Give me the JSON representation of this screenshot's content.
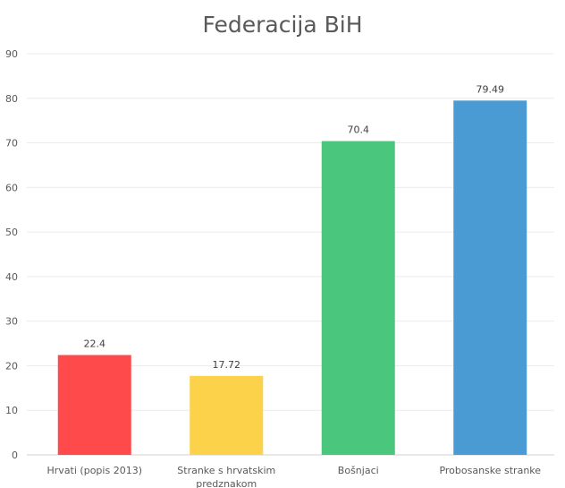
{
  "chart_data": {
    "type": "bar",
    "title": "Federacija BiH",
    "xlabel": "",
    "ylabel": "",
    "ylim": [
      0,
      90
    ],
    "yticks": [
      0,
      10,
      20,
      30,
      40,
      50,
      60,
      70,
      80,
      90
    ],
    "grid": true,
    "legend": "none",
    "categories": [
      "Hrvati (popis 2013)",
      "Stranke s hrvatskim predznakom",
      "Bošnjaci",
      "Probosanske stranke"
    ],
    "category_lines": [
      [
        "Hrvati (popis 2013)"
      ],
      [
        "Stranke s hrvatskim",
        "predznakom"
      ],
      [
        "Bošnjaci"
      ],
      [
        "Probosanske stranke"
      ]
    ],
    "values": [
      22.4,
      17.72,
      70.4,
      79.49
    ],
    "data_labels": [
      "22.4",
      "17.72",
      "70.4",
      "79.49"
    ],
    "colors": [
      "#fe4a4a",
      "#fdd24b",
      "#4ac77d",
      "#4a9ad4"
    ]
  }
}
